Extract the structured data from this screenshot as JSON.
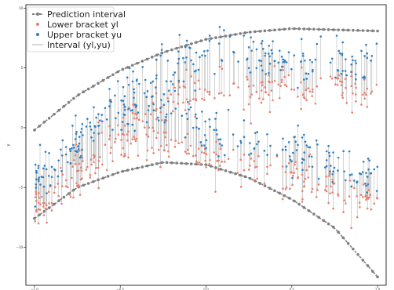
{
  "chart_data": {
    "type": "scatter",
    "title": "",
    "xlabel": "",
    "ylabel": "y",
    "xlim": [
      -1.05,
      1.05
    ],
    "ylim": [
      -13.2,
      10.3
    ],
    "xticks": [
      -1.0,
      -0.5,
      0.0,
      0.5,
      1.0
    ],
    "xtick_labels": [
      "−1.0",
      "−0.5",
      "0.0",
      "0.5",
      "1.0"
    ],
    "yticks": [
      -10,
      -5,
      0,
      5,
      10
    ],
    "ytick_labels": [
      "−10",
      "−5",
      "0",
      "5",
      "10"
    ],
    "grid": false,
    "legend_position": "top-left",
    "legend": [
      {
        "label": "Prediction interval",
        "marker": "line-dot",
        "color": "#7f7f7f"
      },
      {
        "label": "Lower bracket yl",
        "marker": "dot",
        "color": "#e8806f"
      },
      {
        "label": "Upper bracket yu",
        "marker": "dot",
        "color": "#2f7fbf"
      },
      {
        "label": "Interval (yl,yu)",
        "marker": "line",
        "color": "#b0b0b0"
      }
    ],
    "prediction_interval": {
      "upper": {
        "x": [
          -1.0,
          -0.75,
          -0.5,
          -0.25,
          0.0,
          0.25,
          0.5,
          0.75,
          1.0
        ],
        "y": [
          -0.2,
          2.7,
          4.8,
          6.3,
          7.4,
          8.0,
          8.3,
          8.2,
          8.1
        ]
      },
      "lower": {
        "x": [
          -1.0,
          -0.75,
          -0.5,
          -0.25,
          0.0,
          0.25,
          0.5,
          0.75,
          1.0
        ],
        "y": [
          -7.6,
          -5.0,
          -3.7,
          -2.9,
          -3.1,
          -4.2,
          -6.0,
          -8.4,
          -12.5
        ]
      }
    },
    "branches": [
      {
        "x_range": [
          -1.0,
          1.0
        ],
        "lower_center": [
          [
            -1.0,
            -6.8
          ],
          [
            -0.75,
            -3.4
          ],
          [
            -0.5,
            0.0
          ],
          [
            -0.25,
            1.8
          ],
          [
            0.0,
            3.2
          ],
          [
            0.5,
            3.5
          ],
          [
            1.0,
            3.0
          ]
        ],
        "upper_center": [
          [
            -1.0,
            -5.0
          ],
          [
            -0.75,
            -1.0
          ],
          [
            -0.5,
            3.0
          ],
          [
            -0.25,
            4.5
          ],
          [
            0.0,
            6.0
          ],
          [
            0.5,
            5.2
          ],
          [
            1.0,
            5.0
          ]
        ]
      },
      {
        "x_range": [
          -1.0,
          1.0
        ],
        "lower_center": [
          [
            -1.0,
            -7.5
          ],
          [
            -0.75,
            -4.6
          ],
          [
            -0.5,
            -1.5
          ],
          [
            -0.25,
            -1.0
          ],
          [
            0.0,
            -2.5
          ],
          [
            0.5,
            -4.0
          ],
          [
            1.0,
            -6.5
          ]
        ],
        "upper_center": [
          [
            -1.0,
            -5.3
          ],
          [
            -0.75,
            -2.0
          ],
          [
            -0.5,
            1.0
          ],
          [
            -0.25,
            1.5
          ],
          [
            0.0,
            -0.5
          ],
          [
            0.5,
            -2.5
          ],
          [
            1.0,
            -4.5
          ]
        ]
      }
    ],
    "points_per_branch": 220,
    "colors": {
      "lower": "#e8806f",
      "upper": "#2f7fbf",
      "interval": "#b8b8b8",
      "prediction": "#7f7f7f"
    }
  }
}
